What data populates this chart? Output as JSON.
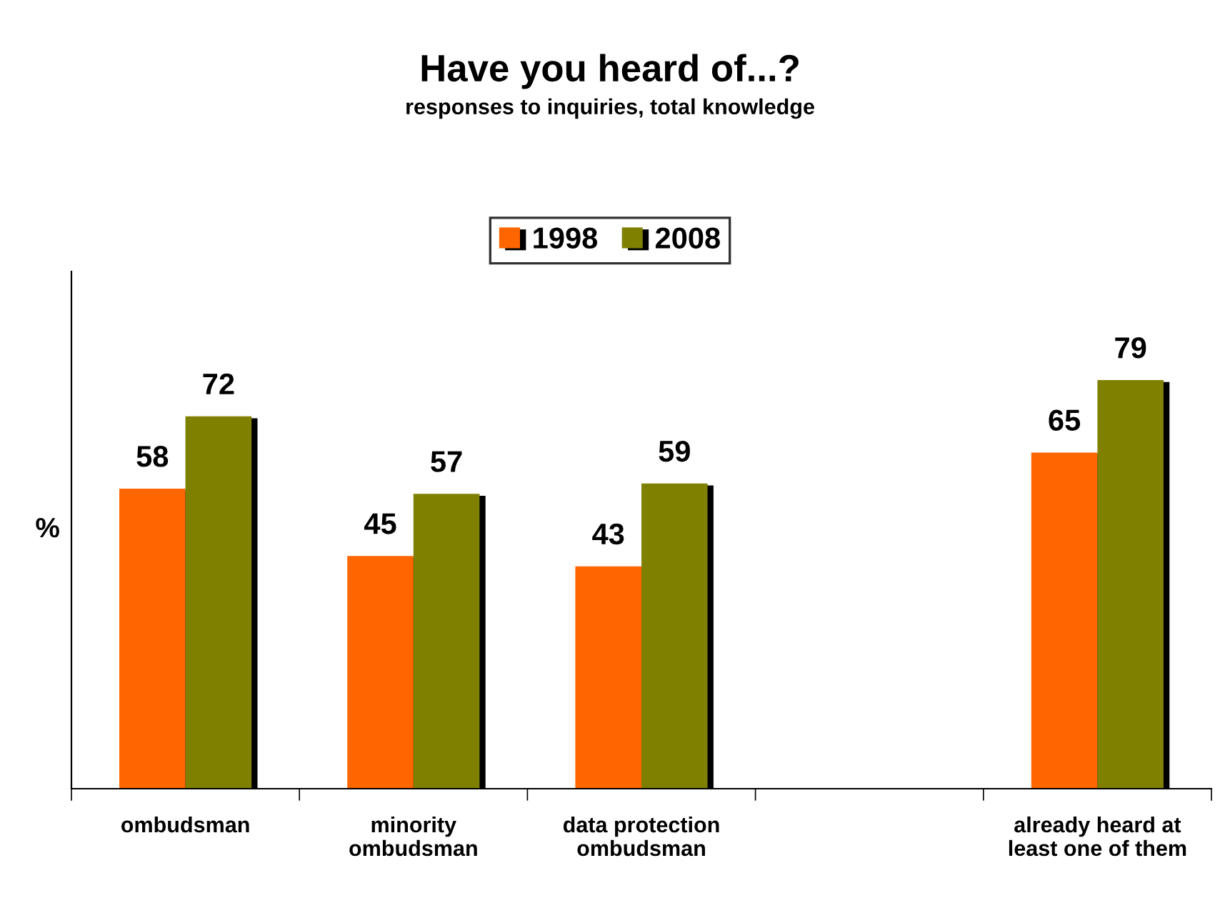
{
  "chart_data": {
    "type": "bar",
    "title": "Have you heard of...?",
    "subtitle": "responses to inquiries, total knowledge",
    "ylabel": "%",
    "categories": [
      "ombudsman",
      "minority ombudsman",
      "data protection ombudsman",
      null,
      "already heard at least one of them"
    ],
    "series": [
      {
        "name": "1998",
        "color": "#ff6600",
        "values": [
          58,
          45,
          43,
          null,
          65
        ]
      },
      {
        "name": "2008",
        "color": "#808000",
        "values": [
          72,
          57,
          59,
          null,
          79
        ]
      }
    ],
    "ylim": [
      0,
      100
    ],
    "data_labels": true,
    "grid": false,
    "legend": "top",
    "tick_labels": "x"
  }
}
